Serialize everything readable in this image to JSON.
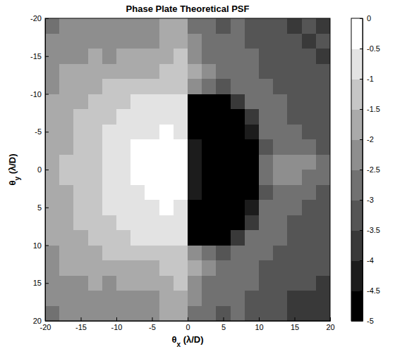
{
  "chart_data": {
    "type": "heatmap",
    "title": "Phase Plate Theoretical PSF",
    "xlabel": "θx (λ/D)",
    "ylabel": "θy (λ/D)",
    "xlim": [
      -20,
      20
    ],
    "ylim": [
      -20,
      20
    ],
    "xticks": [
      -20,
      -15,
      -10,
      -5,
      0,
      5,
      10,
      15,
      20
    ],
    "yticks": [
      -20,
      -15,
      -10,
      -5,
      0,
      5,
      10,
      15,
      20
    ],
    "x": [
      -19,
      -17,
      -15,
      -13,
      -11,
      -9,
      -7,
      -5,
      -3,
      -1,
      1,
      3,
      5,
      7,
      9,
      11,
      13,
      15,
      17,
      19
    ],
    "y": [
      -19,
      -17,
      -15,
      -13,
      -11,
      -9,
      -7,
      -5,
      -3,
      -1,
      1,
      3,
      5,
      7,
      9,
      11,
      13,
      15,
      17,
      19
    ],
    "z": [
      [
        -2.6,
        -2.3,
        -2.4,
        -2.2,
        -2.5,
        -2.3,
        -2.2,
        -2.4,
        -1.9,
        -1.7,
        -2.6,
        -2.9,
        -3.1,
        -2.9,
        -3.2,
        -3.4,
        -3.3,
        -3.6,
        -3.4,
        -3.7
      ],
      [
        -2.4,
        -2.2,
        -2.3,
        -2.1,
        -2.3,
        -2.2,
        -2.1,
        -2.2,
        -1.8,
        -1.6,
        -2.4,
        -2.8,
        -2.9,
        -3.0,
        -3.1,
        -3.3,
        -3.5,
        -3.3,
        -3.6,
        -3.5
      ],
      [
        -2.3,
        -2.1,
        -2.2,
        -2.0,
        -2.1,
        -2.0,
        -1.9,
        -2.0,
        -1.6,
        -1.5,
        -2.2,
        -2.6,
        -2.7,
        -2.9,
        -3.0,
        -3.2,
        -3.3,
        -3.4,
        -3.3,
        -3.6
      ],
      [
        -2.2,
        -2.0,
        -1.9,
        -1.8,
        -1.9,
        -1.7,
        -1.6,
        -1.7,
        -1.4,
        -1.3,
        -2.0,
        -2.4,
        -2.6,
        -2.7,
        -2.9,
        -3.1,
        -3.2,
        -3.3,
        -3.4,
        -3.3
      ],
      [
        -2.1,
        -1.9,
        -1.8,
        -1.6,
        -1.5,
        -1.4,
        -1.3,
        -1.4,
        -1.2,
        -1.1,
        -2.3,
        -2.9,
        -3.2,
        -2.8,
        -2.7,
        -2.9,
        -3.1,
        -3.2,
        -3.4,
        -3.5
      ],
      [
        -2.0,
        -1.8,
        -1.6,
        -1.4,
        -1.2,
        -1.1,
        -1.0,
        -1.0,
        -0.9,
        -0.9,
        -4.6,
        -4.8,
        -4.7,
        -3.8,
        -2.9,
        -2.8,
        -3.0,
        -3.2,
        -3.3,
        -3.4
      ],
      [
        -2.0,
        -1.7,
        -1.5,
        -1.3,
        -1.1,
        -0.9,
        -0.8,
        -0.8,
        -0.7,
        -0.8,
        -4.7,
        -4.9,
        -4.8,
        -4.7,
        -3.9,
        -2.9,
        -2.9,
        -3.1,
        -3.2,
        -3.4
      ],
      [
        -1.9,
        -1.7,
        -1.4,
        -1.2,
        -1.0,
        -0.8,
        -0.7,
        -0.6,
        -0.5,
        -0.7,
        -4.6,
        -4.9,
        -4.9,
        -4.8,
        -4.5,
        -3.0,
        -2.9,
        -3.0,
        -3.1,
        -3.3
      ],
      [
        -1.8,
        -1.6,
        -1.3,
        -1.1,
        -0.9,
        -0.7,
        -0.5,
        -0.4,
        -0.3,
        -0.5,
        -4.5,
        -4.9,
        -4.9,
        -4.8,
        -4.7,
        -3.2,
        -2.7,
        -2.9,
        -3.0,
        -3.2
      ],
      [
        -1.7,
        -1.5,
        -1.3,
        -1.2,
        -1.0,
        -0.8,
        -0.5,
        -0.3,
        -0.1,
        -0.2,
        -4.2,
        -4.8,
        -4.9,
        -4.8,
        -4.6,
        -2.6,
        -2.4,
        -2.5,
        -2.5,
        -2.6
      ],
      [
        -1.7,
        -1.5,
        -1.4,
        -1.2,
        -0.9,
        -0.8,
        -0.5,
        -0.3,
        -0.1,
        -0.2,
        -4.3,
        -4.8,
        -4.9,
        -4.8,
        -4.6,
        -2.6,
        -2.5,
        -2.4,
        -2.6,
        -2.6
      ],
      [
        -1.8,
        -1.6,
        -1.3,
        -1.1,
        -0.9,
        -0.7,
        -0.6,
        -0.4,
        -0.3,
        -0.5,
        -4.5,
        -4.9,
        -4.9,
        -4.8,
        -4.7,
        -3.2,
        -2.8,
        -2.9,
        -3.0,
        -3.2
      ],
      [
        -1.9,
        -1.6,
        -1.4,
        -1.2,
        -1.0,
        -0.8,
        -0.7,
        -0.6,
        -0.5,
        -0.7,
        -4.6,
        -4.9,
        -4.9,
        -4.8,
        -4.5,
        -3.0,
        -2.9,
        -3.0,
        -3.2,
        -3.3
      ],
      [
        -2.0,
        -1.7,
        -1.5,
        -1.3,
        -1.1,
        -0.9,
        -0.8,
        -0.8,
        -0.7,
        -0.8,
        -4.7,
        -4.9,
        -4.8,
        -4.7,
        -3.9,
        -2.9,
        -3.0,
        -3.1,
        -3.2,
        -3.4
      ],
      [
        -2.0,
        -1.8,
        -1.6,
        -1.4,
        -1.2,
        -1.1,
        -1.0,
        -1.0,
        -0.9,
        -0.9,
        -4.6,
        -4.8,
        -4.7,
        -3.8,
        -2.9,
        -2.8,
        -3.0,
        -3.2,
        -3.3,
        -3.5
      ],
      [
        -2.1,
        -1.9,
        -1.8,
        -1.6,
        -1.5,
        -1.4,
        -1.3,
        -1.4,
        -1.2,
        -1.1,
        -2.3,
        -2.9,
        -3.2,
        -2.8,
        -2.7,
        -2.9,
        -3.1,
        -3.3,
        -3.4,
        -3.5
      ],
      [
        -2.2,
        -2.0,
        -1.9,
        -1.8,
        -1.9,
        -1.7,
        -1.6,
        -1.7,
        -1.4,
        -1.3,
        -2.0,
        -2.4,
        -2.6,
        -2.7,
        -2.9,
        -3.1,
        -3.2,
        -3.3,
        -3.5,
        -3.4
      ],
      [
        -2.3,
        -2.2,
        -2.2,
        -2.0,
        -2.1,
        -2.0,
        -1.9,
        -2.0,
        -1.6,
        -1.5,
        -2.2,
        -2.6,
        -2.7,
        -2.9,
        -3.0,
        -3.2,
        -3.4,
        -3.4,
        -3.5,
        -3.6
      ],
      [
        -2.4,
        -2.3,
        -2.3,
        -2.1,
        -2.3,
        -2.2,
        -2.1,
        -2.2,
        -1.8,
        -1.6,
        -2.4,
        -2.8,
        -2.9,
        -3.0,
        -3.2,
        -3.3,
        -3.5,
        -3.6,
        -3.7,
        -3.6
      ],
      [
        -2.6,
        -2.4,
        -2.4,
        -2.3,
        -2.5,
        -2.3,
        -2.2,
        -2.4,
        -1.9,
        -1.7,
        -2.6,
        -2.9,
        -3.1,
        -3.0,
        -3.2,
        -3.4,
        -3.5,
        -3.7,
        -3.8,
        -3.9
      ]
    ],
    "colorbar": {
      "lim": [
        -5,
        0
      ],
      "ticks": [
        -5,
        -4.5,
        -4,
        -3.5,
        -3,
        -2.5,
        -2,
        -1.5,
        -1,
        -0.5,
        0
      ]
    }
  }
}
